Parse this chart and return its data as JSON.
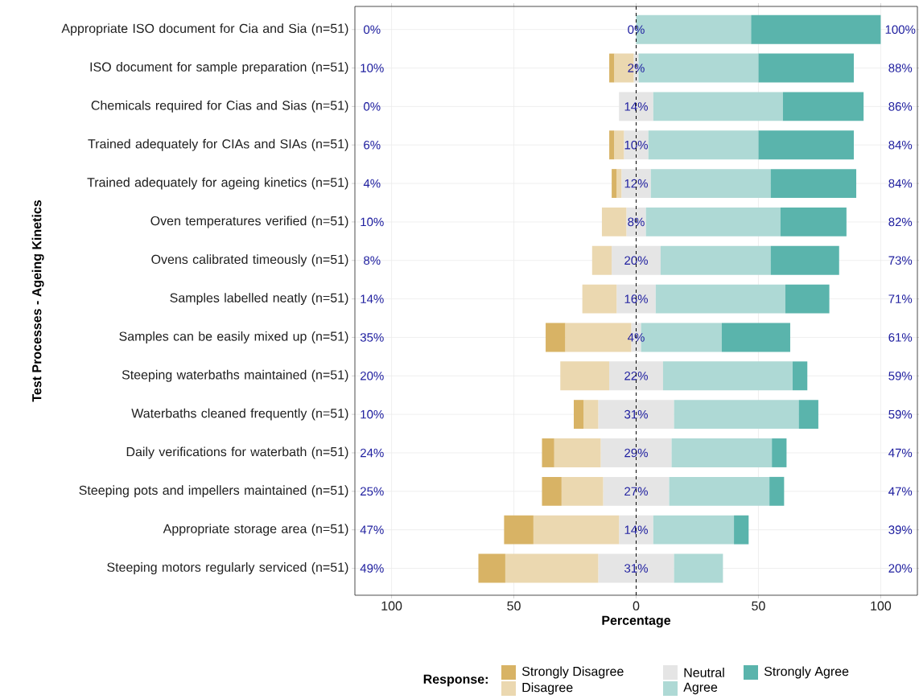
{
  "chart_data": {
    "type": "bar",
    "orientation": "horizontal",
    "stacked": true,
    "xlabel": "Percentage",
    "ylabel": "Test Processes - Ageing Kinetics",
    "legend_title": "Response:",
    "categories": [
      "Appropriate ISO document for Cia and Sia (n=51)",
      "ISO document for sample preparation (n=51)",
      "Chemicals required for Cias and Sias (n=51)",
      "Trained adequately for CIAs and SIAs (n=51)",
      "Trained adequately for ageing kinetics (n=51)",
      "Oven temperatures verified (n=51)",
      "Ovens calibrated timeously (n=51)",
      "Samples labelled neatly (n=51)",
      "Samples can be easily mixed up (n=51)",
      "Steeping waterbaths maintained (n=51)",
      "Waterbaths cleaned frequently (n=51)",
      "Daily verifications for waterbath (n=51)",
      "Steeping pots and impellers maintained (n=51)",
      "Appropriate storage area (n=51)",
      "Steeping motors regularly serviced (n=51)"
    ],
    "series": [
      {
        "name": "Neutral",
        "color": "#e5e5e5",
        "values": [
          0,
          -1,
          -7,
          -5,
          -6,
          -4,
          -10,
          -8,
          -2,
          -11,
          -15.5,
          -14.5,
          -13.5,
          -7,
          -15.5
        ]
      },
      {
        "name": "Disagree",
        "color": "#ebd8b0",
        "values": [
          0,
          -8,
          0,
          -4,
          -2,
          -10,
          -8,
          -14,
          -27,
          -20,
          -6,
          -19,
          -17,
          -35,
          -38
        ]
      },
      {
        "name": "Strongly Disagree",
        "color": "#d8b365",
        "values": [
          0,
          -2,
          0,
          -2,
          -2,
          0,
          0,
          0,
          -8,
          0,
          -4,
          -5,
          -8,
          -12,
          -11
        ]
      },
      {
        "color": "#e5e5e5",
        "values": [
          0,
          1,
          7,
          5,
          6,
          4,
          10,
          8,
          2,
          11,
          15.5,
          14.5,
          13.5,
          7,
          15.5
        ]
      },
      {
        "name": "Agree",
        "color": "#aed9d5",
        "values": [
          47,
          49,
          53,
          45,
          49,
          55,
          45,
          53,
          33,
          53,
          51,
          41,
          41,
          33,
          20
        ]
      },
      {
        "name": "Strongly Agree",
        "color": "#5ab4ac",
        "values": [
          53,
          39,
          33,
          39,
          35,
          27,
          28,
          18,
          28,
          6,
          8,
          6,
          6,
          6,
          0
        ]
      }
    ],
    "annotations": [
      "0%",
      "10%",
      "0%",
      "6%",
      "4%",
      "10%",
      "8%",
      "14%",
      "35%",
      "20%",
      "10%",
      "24%",
      "25%",
      "47%",
      "49%",
      "0%",
      "2%",
      "14%",
      "10%",
      "12%",
      "8%",
      "20%",
      "16%",
      "4%",
      "22%",
      "31%",
      "29%",
      "27%",
      "14%",
      "31%",
      "100%",
      "88%",
      "86%",
      "84%",
      "84%",
      "82%",
      "73%",
      "71%",
      "61%",
      "59%",
      "59%",
      "47%",
      "47%",
      "39%",
      "20%"
    ],
    "xlim": [
      -115,
      115
    ],
    "xticks": [
      {
        "value": -100,
        "label": "100"
      },
      {
        "value": -50,
        "label": "50"
      },
      0,
      50,
      100
    ],
    "ref_lines": [
      {
        "axis": "x",
        "value": 0,
        "line_style": "dashed",
        "color": "#000000"
      }
    ],
    "grid": true,
    "legend": "bottom"
  }
}
